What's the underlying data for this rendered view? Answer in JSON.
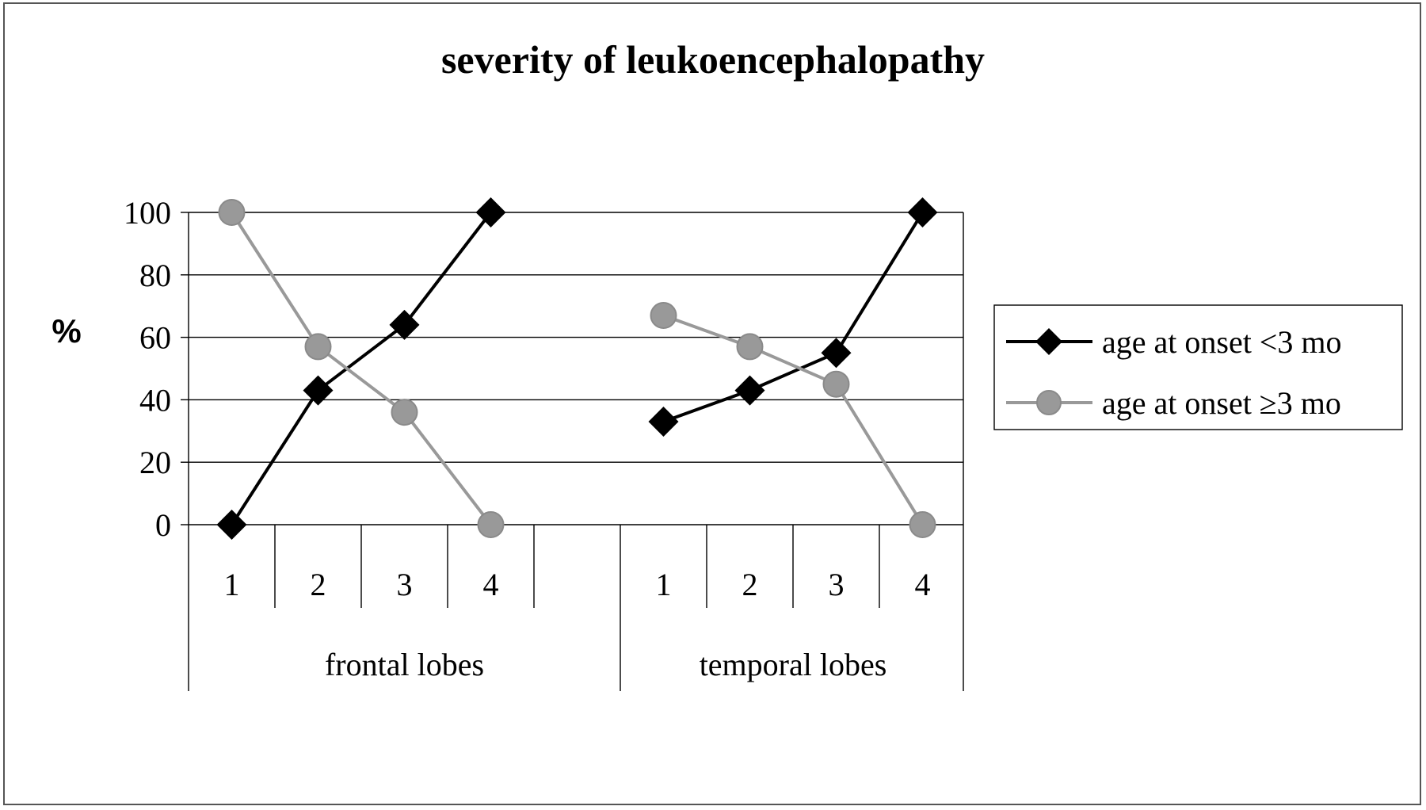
{
  "chart_data": {
    "type": "line",
    "title": "severity of leukoencephalopathy",
    "ylabel": "%",
    "xlabel": "",
    "ylim": [
      0,
      100
    ],
    "yticks": [
      0,
      20,
      40,
      60,
      80,
      100
    ],
    "groups": [
      {
        "label": "frontal lobes",
        "categories": [
          "1",
          "2",
          "3",
          "4",
          ""
        ]
      },
      {
        "label": "temporal lobes",
        "categories": [
          "1",
          "2",
          "3",
          "4"
        ]
      }
    ],
    "grid": true,
    "legend_position": "right",
    "series": [
      {
        "name": "age at onset <3 mo",
        "color": "#000000",
        "marker": "diamond",
        "segments": [
          [
            0,
            43,
            64,
            100
          ],
          [
            33,
            43,
            55,
            100
          ]
        ]
      },
      {
        "name": "age at onset ≥3 mo",
        "color": "#999999",
        "marker": "circle",
        "segments": [
          [
            100,
            57,
            36,
            0
          ],
          [
            67,
            57,
            45,
            0
          ]
        ]
      }
    ]
  }
}
